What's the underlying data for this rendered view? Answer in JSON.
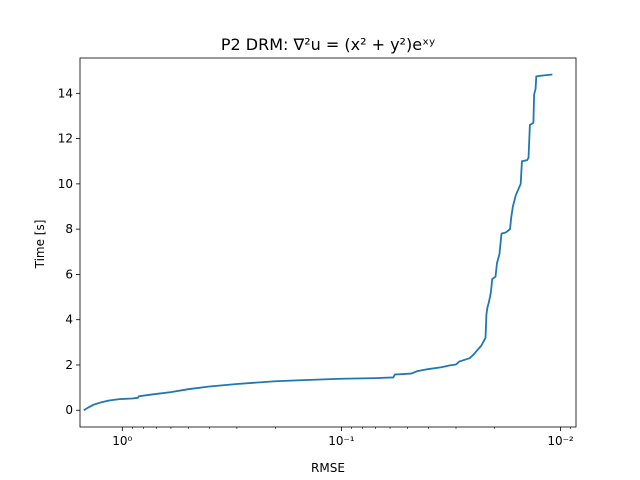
{
  "chart_data": {
    "type": "line",
    "title": "P2 DRM: ∇²u = (x² + y²)eˣʸ",
    "xlabel": "RMSE",
    "ylabel": "Time [s]",
    "x_scale": "log",
    "x_inverted": true,
    "xlim": [
      1.56,
      0.0085
    ],
    "ylim": [
      -0.74,
      15.56
    ],
    "x_ticks": [
      {
        "value": 1,
        "label": "10⁰"
      },
      {
        "value": 0.1,
        "label": "10⁻¹"
      },
      {
        "value": 0.01,
        "label": "10⁻²"
      }
    ],
    "y_ticks": [
      0,
      2,
      4,
      6,
      8,
      10,
      12,
      14
    ],
    "grid": false,
    "series": [
      {
        "color": "#1f77b4",
        "points": [
          [
            1.5,
            0.0
          ],
          [
            1.43,
            0.12
          ],
          [
            1.35,
            0.25
          ],
          [
            1.25,
            0.35
          ],
          [
            1.15,
            0.43
          ],
          [
            1.03,
            0.49
          ],
          [
            0.9,
            0.52
          ],
          [
            0.85,
            0.55
          ],
          [
            0.84,
            0.62
          ],
          [
            0.78,
            0.66
          ],
          [
            0.7,
            0.72
          ],
          [
            0.6,
            0.8
          ],
          [
            0.5,
            0.93
          ],
          [
            0.4,
            1.05
          ],
          [
            0.3,
            1.16
          ],
          [
            0.2,
            1.28
          ],
          [
            0.15,
            1.33
          ],
          [
            0.1,
            1.39
          ],
          [
            0.07,
            1.42
          ],
          [
            0.058,
            1.45
          ],
          [
            0.057,
            1.58
          ],
          [
            0.048,
            1.62
          ],
          [
            0.045,
            1.73
          ],
          [
            0.04,
            1.82
          ],
          [
            0.035,
            1.9
          ],
          [
            0.032,
            1.98
          ],
          [
            0.03,
            2.02
          ],
          [
            0.029,
            2.15
          ],
          [
            0.026,
            2.3
          ],
          [
            0.025,
            2.45
          ],
          [
            0.024,
            2.65
          ],
          [
            0.023,
            2.85
          ],
          [
            0.022,
            3.2
          ],
          [
            0.0218,
            4.2
          ],
          [
            0.0216,
            4.5
          ],
          [
            0.0212,
            4.8
          ],
          [
            0.0208,
            5.2
          ],
          [
            0.0205,
            5.8
          ],
          [
            0.0198,
            5.9
          ],
          [
            0.0195,
            6.5
          ],
          [
            0.019,
            6.9
          ],
          [
            0.0186,
            7.8
          ],
          [
            0.0178,
            7.85
          ],
          [
            0.017,
            8.0
          ],
          [
            0.0168,
            8.5
          ],
          [
            0.0165,
            9.0
          ],
          [
            0.016,
            9.5
          ],
          [
            0.0152,
            10.0
          ],
          [
            0.015,
            11.0
          ],
          [
            0.0142,
            11.05
          ],
          [
            0.014,
            11.15
          ],
          [
            0.0138,
            12.6
          ],
          [
            0.0133,
            12.7
          ],
          [
            0.0132,
            13.95
          ],
          [
            0.013,
            14.2
          ],
          [
            0.0129,
            14.75
          ],
          [
            0.0122,
            14.78
          ],
          [
            0.0109,
            14.83
          ]
        ]
      }
    ]
  }
}
